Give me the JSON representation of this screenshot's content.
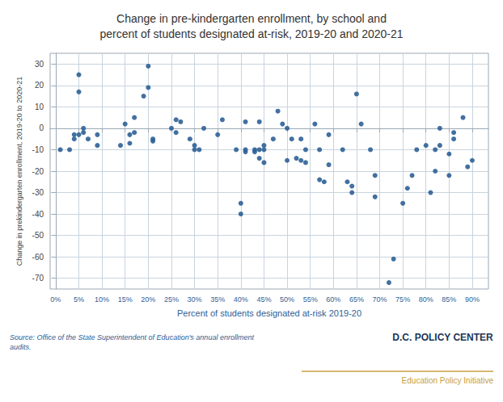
{
  "chart_data": {
    "type": "scatter",
    "title": "Change in pre-kindergarten enrollment, by school and\npercent of students designated at-risk, 2019-20 and 2020-21",
    "xlabel": "Percent of students designated at-risk 2019-20",
    "ylabel": "Change in prekindergarten enrollment, 2019-20 to 2020-21",
    "annotations": [
      "Source: Office of the State Superintendent of Education's annual enrollment\naudits.",
      "D.C. POLICY CENTER",
      "Education Policy Initiative"
    ],
    "color": "#2e6096",
    "grid": true,
    "xlim": [
      -0.012,
      0.935
    ],
    "ylim": [
      -75,
      35
    ],
    "xticks": [
      {
        "value": 0,
        "label": "0%"
      },
      {
        "value": 0.05,
        "label": "5%"
      },
      {
        "value": 0.1,
        "label": "10%"
      },
      {
        "value": 0.15,
        "label": "15%"
      },
      {
        "value": 0.2,
        "label": "20%"
      },
      {
        "value": 0.25,
        "label": "25%"
      },
      {
        "value": 0.3,
        "label": "30%"
      },
      {
        "value": 0.35,
        "label": "35%"
      },
      {
        "value": 0.4,
        "label": "40%"
      },
      {
        "value": 0.45,
        "label": "45%"
      },
      {
        "value": 0.5,
        "label": "50%"
      },
      {
        "value": 0.55,
        "label": "55%"
      },
      {
        "value": 0.6,
        "label": "60%"
      },
      {
        "value": 0.65,
        "label": "65%"
      },
      {
        "value": 0.7,
        "label": "70%"
      },
      {
        "value": 0.75,
        "label": "75%"
      },
      {
        "value": 0.8,
        "label": "80%"
      },
      {
        "value": 0.85,
        "label": "85%"
      },
      {
        "value": 0.9,
        "label": "90%"
      }
    ],
    "yticks": [
      30,
      20,
      10,
      0,
      -10,
      -20,
      -30,
      -40,
      -50,
      -60,
      -70
    ],
    "x": [
      0.01,
      0.03,
      0.04,
      0.04,
      0.05,
      0.05,
      0.05,
      0.06,
      0.06,
      0.07,
      0.09,
      0.09,
      0.14,
      0.15,
      0.16,
      0.16,
      0.17,
      0.17,
      0.19,
      0.2,
      0.2,
      0.21,
      0.21,
      0.25,
      0.26,
      0.26,
      0.27,
      0.29,
      0.3,
      0.3,
      0.31,
      0.32,
      0.35,
      0.36,
      0.39,
      0.4,
      0.4,
      0.41,
      0.41,
      0.41,
      0.43,
      0.43,
      0.44,
      0.44,
      0.44,
      0.45,
      0.45,
      0.45,
      0.47,
      0.48,
      0.49,
      0.5,
      0.5,
      0.51,
      0.52,
      0.53,
      0.53,
      0.54,
      0.54,
      0.56,
      0.57,
      0.57,
      0.58,
      0.59,
      0.59,
      0.62,
      0.63,
      0.64,
      0.64,
      0.65,
      0.66,
      0.68,
      0.69,
      0.69,
      0.72,
      0.73,
      0.75,
      0.76,
      0.77,
      0.78,
      0.8,
      0.81,
      0.82,
      0.82,
      0.83,
      0.83,
      0.85,
      0.85,
      0.86,
      0.86,
      0.88,
      0.89,
      0.9
    ],
    "values": [
      -10,
      -10,
      -3,
      -5,
      25,
      17,
      -3,
      -2,
      0,
      -5,
      -3,
      -8,
      -8,
      2,
      -7,
      -3,
      5,
      -2,
      15,
      19,
      29,
      -6,
      -5,
      0,
      -2,
      4,
      3,
      -5,
      -8,
      -10,
      -10,
      0,
      -3,
      4,
      -10,
      -35,
      -40,
      3,
      -10,
      -11,
      -10,
      -11,
      -10,
      -14,
      3,
      -16,
      -10,
      -8,
      -5,
      8,
      2,
      0,
      -15,
      -5,
      -14,
      -15,
      -5,
      -16,
      -10,
      2,
      -10,
      -24,
      -25,
      -17,
      -3,
      -10,
      -25,
      -27,
      -30,
      16,
      2,
      -10,
      -22,
      -32,
      -72,
      -61,
      -35,
      -28,
      -22,
      -10,
      -8,
      -30,
      -20,
      -10,
      0,
      -8,
      -22,
      -12,
      -5,
      -2,
      5,
      -18,
      -15
    ]
  }
}
